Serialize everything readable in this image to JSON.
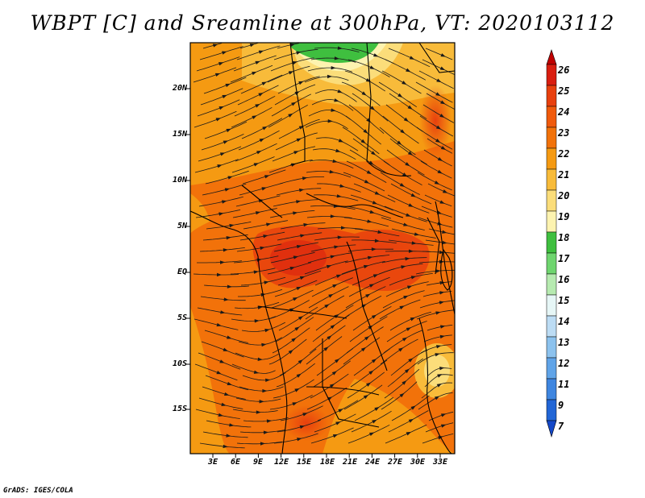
{
  "title": "WBPT [C] and Sreamline at 300hPa, VT: 2020103112",
  "credit": "GrADS: IGES/COLA",
  "map": {
    "lat_ticks": [
      "20N",
      "15N",
      "10N",
      "5N",
      "EQ",
      "5S",
      "10S",
      "15S"
    ],
    "lon_ticks": [
      "3E",
      "6E",
      "9E",
      "12E",
      "15E",
      "18E",
      "21E",
      "24E",
      "27E",
      "30E",
      "33E"
    ]
  },
  "colorbar": {
    "labels": [
      "26",
      "25",
      "24",
      "23",
      "22",
      "21",
      "20",
      "19",
      "18",
      "17",
      "16",
      "15",
      "14",
      "13",
      "12",
      "11",
      "9",
      "7"
    ],
    "colors": [
      "#c00000",
      "#d91e10",
      "#e8400e",
      "#f05a0c",
      "#f2720a",
      "#f59a12",
      "#f8bb3a",
      "#fbdd7a",
      "#fdf3b0",
      "#3fbf3f",
      "#6fd56f",
      "#b6eab0",
      "#e6f6f6",
      "#bcdcf4",
      "#8cc2ee",
      "#60a4e8",
      "#3f86e0",
      "#2266d6",
      "#1448c8"
    ]
  }
}
